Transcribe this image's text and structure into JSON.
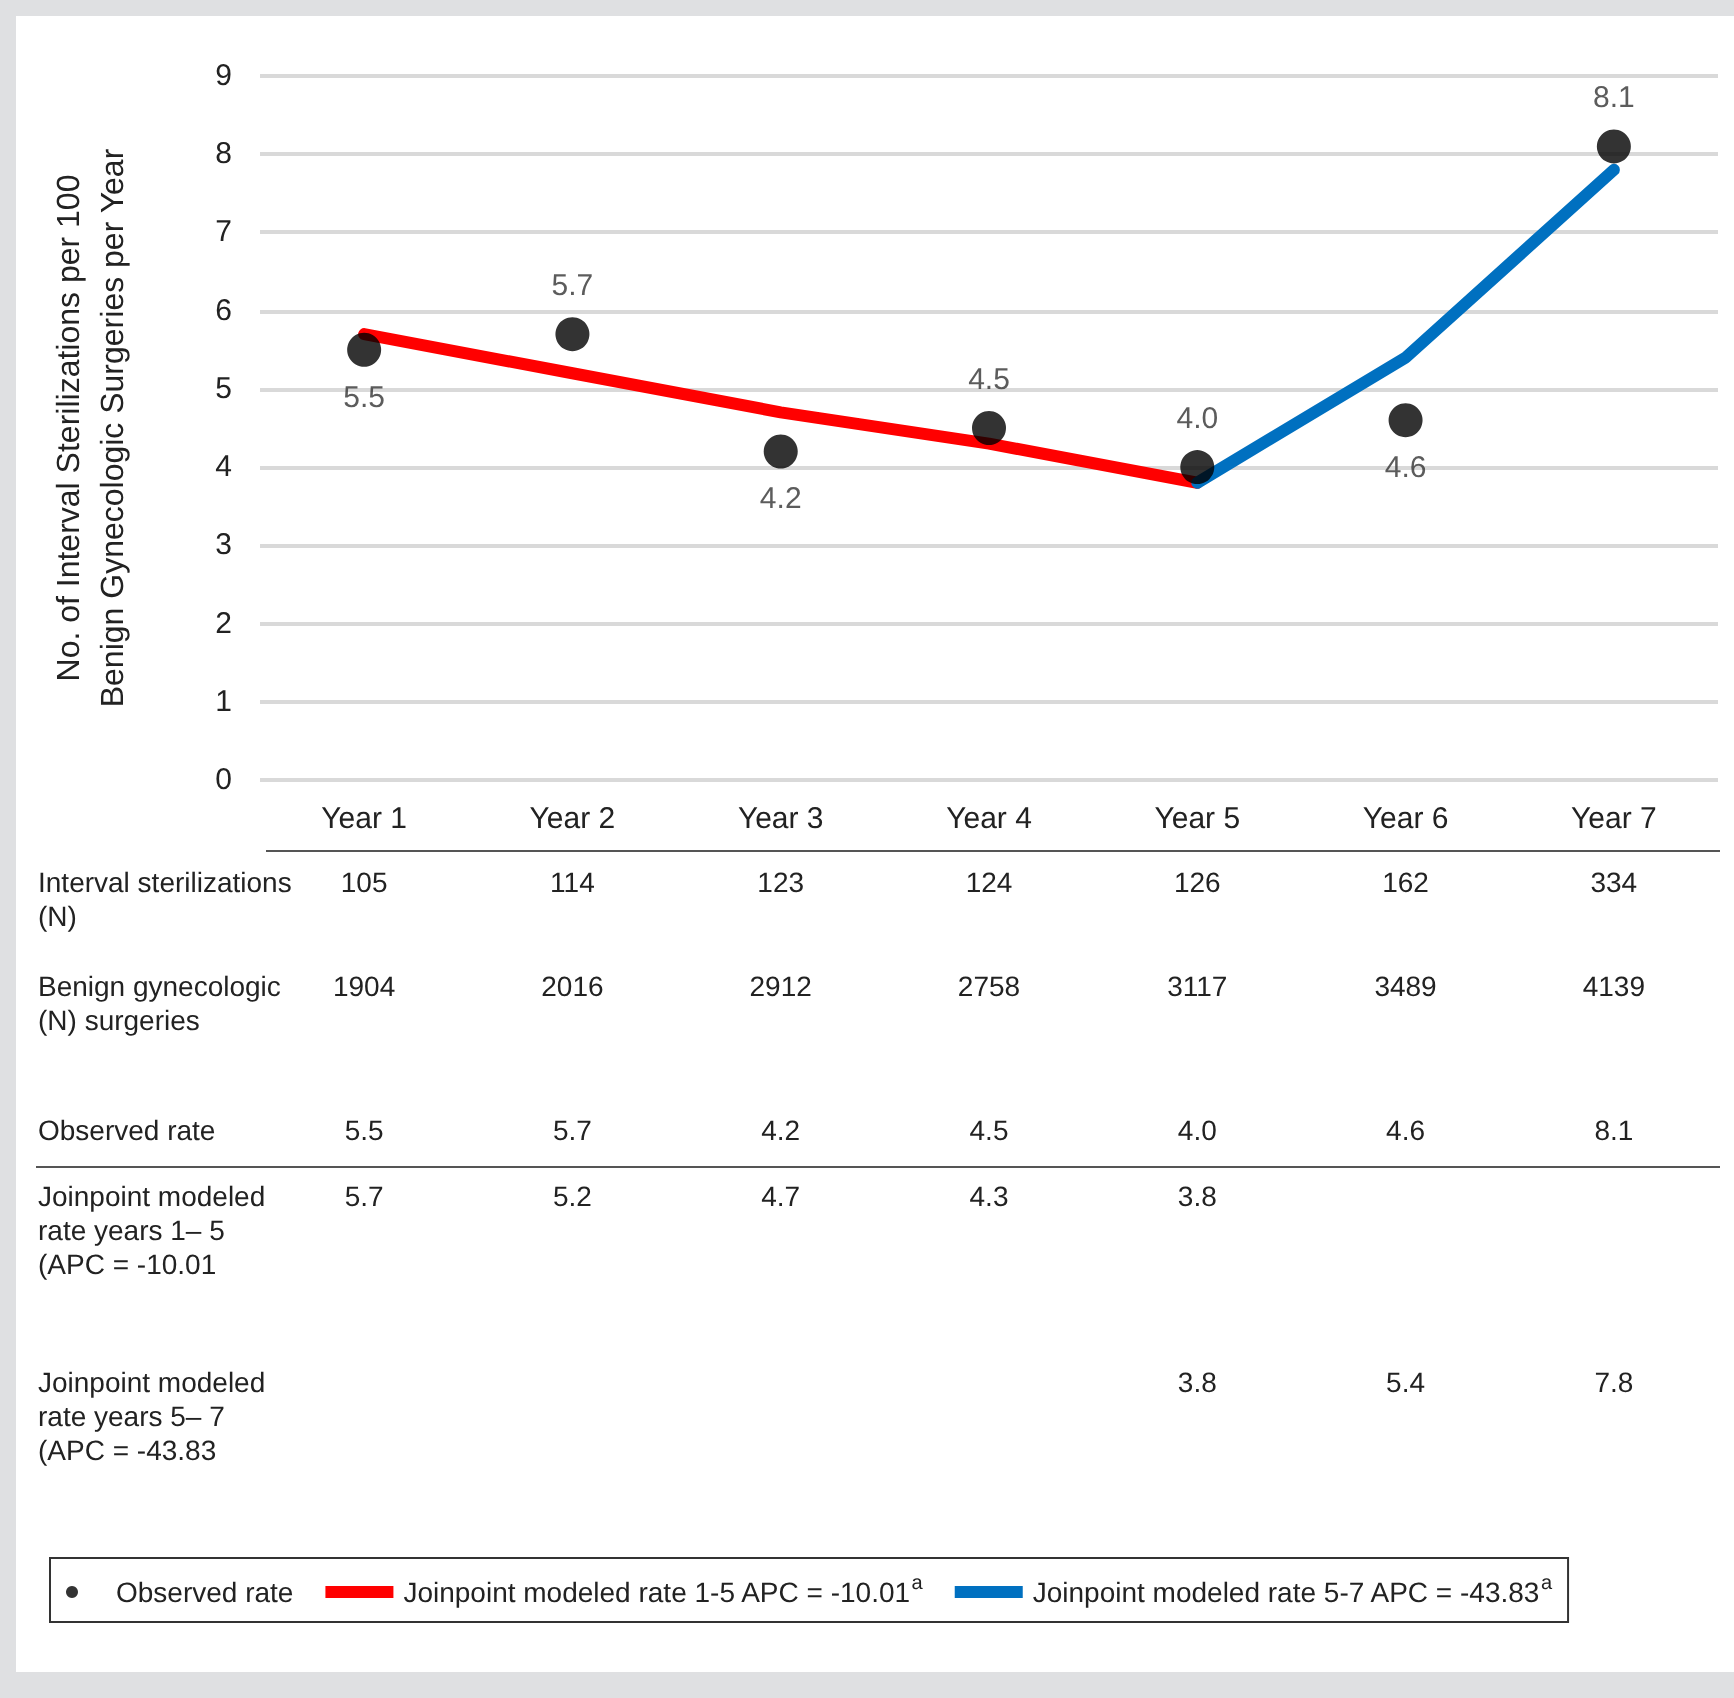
{
  "chart_data": {
    "type": "line",
    "ylabel": "No. of Interval Sterilizations per 100 Benign Gynecologic Surgeries per Year",
    "categories": [
      "Year 1",
      "Year 2",
      "Year 3",
      "Year 4",
      "Year 5",
      "Year 6",
      "Year 7"
    ],
    "ylim": [
      0,
      9
    ],
    "yticks": [
      0,
      1,
      2,
      3,
      4,
      5,
      6,
      7,
      8,
      9
    ],
    "grid": "y",
    "legend": "bottom",
    "series": [
      {
        "name": "Observed rate",
        "type": "scatter",
        "marker": "circle",
        "color": "#000000",
        "values": [
          5.5,
          5.7,
          4.2,
          4.5,
          4.0,
          4.6,
          8.1
        ],
        "value_labels": [
          "5.5",
          "5.7",
          "4.2",
          "4.5",
          "4.0",
          "4.6",
          "8.1"
        ]
      },
      {
        "name": "Joinpoint modeled rate 1-5 APC = -10.01$^{a}$",
        "color": "#ff0000",
        "values": [
          5.7,
          5.2,
          4.7,
          4.3,
          3.8,
          null,
          null
        ],
        "value_labels": [
          "5.7",
          "5.2",
          "4.7",
          "4.3",
          "3.8",
          null,
          null
        ]
      },
      {
        "name": "Joinpoint modeled rate 5-7 APC = -43.83$^{a}$",
        "color": "#0070c0",
        "values": [
          null,
          null,
          null,
          null,
          3.8,
          5.4,
          7.8
        ],
        "value_labels": [
          null,
          null,
          null,
          null,
          "3.8",
          "5.4",
          "7.8"
        ]
      }
    ],
    "annotations": [
      "Interval sterilizations (N)",
      "105",
      "114",
      "123",
      "124",
      "126",
      "162",
      "334",
      "Benign gynecologic (N) surgeries",
      "1904",
      "2016",
      "2912",
      "2758",
      "3117",
      "3489",
      "4139",
      "Observed rate",
      "Joinpoint modeled rate years 1– 5 (APC = -10.01",
      "Joinpoint modeled rate years 5– 7 (APC = -43.83"
    ]
  }
}
